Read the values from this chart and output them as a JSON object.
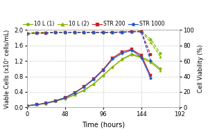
{
  "time_viable": [
    0,
    12,
    24,
    36,
    48,
    60,
    72,
    84,
    96,
    108,
    120,
    132,
    144,
    156,
    168
  ],
  "viable_10L_1": [
    0.04,
    0.07,
    0.1,
    0.16,
    0.22,
    0.32,
    0.44,
    0.6,
    0.82,
    1.05,
    1.25,
    1.38,
    1.3,
    1.2,
    1.0
  ],
  "viable_10L_2": [
    0.04,
    0.07,
    0.1,
    0.16,
    0.23,
    0.33,
    0.45,
    0.61,
    0.83,
    1.05,
    1.24,
    1.36,
    1.28,
    1.16,
    0.96
  ],
  "viable_STR200": [
    0.04,
    0.07,
    0.11,
    0.17,
    0.25,
    0.38,
    0.54,
    0.74,
    0.98,
    1.28,
    1.44,
    1.5,
    1.35,
    0.82,
    null
  ],
  "viable_STR1000": [
    0.04,
    0.07,
    0.11,
    0.17,
    0.25,
    0.37,
    0.53,
    0.72,
    0.96,
    1.25,
    1.4,
    1.48,
    1.3,
    0.76,
    null
  ],
  "time_viab": [
    0,
    12,
    24,
    36,
    48,
    60,
    72,
    84,
    96,
    108,
    120,
    132,
    144,
    156,
    168
  ],
  "viab_10L_1": [
    96,
    97,
    97,
    97,
    97,
    97,
    97,
    97,
    97,
    97,
    98,
    98,
    99,
    88,
    70
  ],
  "viab_10L_2": [
    96,
    97,
    97,
    97,
    97,
    97,
    97,
    97,
    97,
    97,
    98,
    98,
    98,
    84,
    66
  ],
  "viab_STR200": [
    95,
    96,
    96,
    97,
    97,
    97,
    97,
    97,
    97,
    97,
    97,
    98,
    98,
    68,
    null
  ],
  "viab_STR1000": [
    95,
    96,
    96,
    97,
    97,
    97,
    97,
    97,
    97,
    97,
    97,
    98,
    98,
    60,
    null
  ],
  "color_10L_1": "#7ab800",
  "color_10L_2": "#8db600",
  "color_STR200": "#cc2222",
  "color_STR1000": "#2255cc",
  "ylabel_left": "Viable Cells (x10⁷ cells/mL)",
  "ylabel_right": "Cell Viability (%)",
  "xlabel": "Time (hours)",
  "ylim_left": [
    0,
    2.0
  ],
  "ylim_right": [
    0,
    100
  ],
  "xlim": [
    0,
    192
  ],
  "xticks": [
    0,
    48,
    96,
    144,
    192
  ],
  "yticks_left": [
    0.0,
    0.4,
    0.8,
    1.2,
    1.6,
    2.0
  ],
  "yticks_right": [
    0,
    20,
    40,
    60,
    80,
    100
  ],
  "bg_color": "#ffffff",
  "grid_color": "#cccccc"
}
